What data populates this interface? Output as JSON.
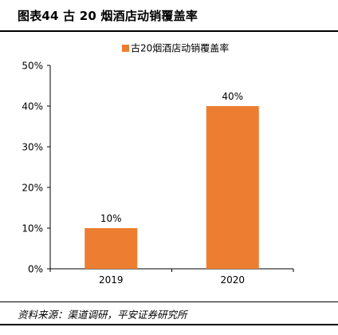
{
  "figure": {
    "title": "图表44    古 20 烟酒店动销覆盖率",
    "source": "资料来源：渠道调研，平安证券研究所"
  },
  "colors": {
    "bar": "#ED7D31",
    "axis": "#000000",
    "text": "#000000"
  },
  "chart_data": {
    "type": "bar",
    "categories": [
      "2019",
      "2020"
    ],
    "series": [
      {
        "name": "古20烟酒店动销覆盖率",
        "values": [
          10,
          40
        ]
      }
    ],
    "data_labels": [
      "10%",
      "40%"
    ],
    "yticks": [
      "0%",
      "10%",
      "20%",
      "30%",
      "40%",
      "50%"
    ],
    "ylim": [
      0,
      50
    ],
    "grid": false,
    "legend_position": "top-center"
  }
}
